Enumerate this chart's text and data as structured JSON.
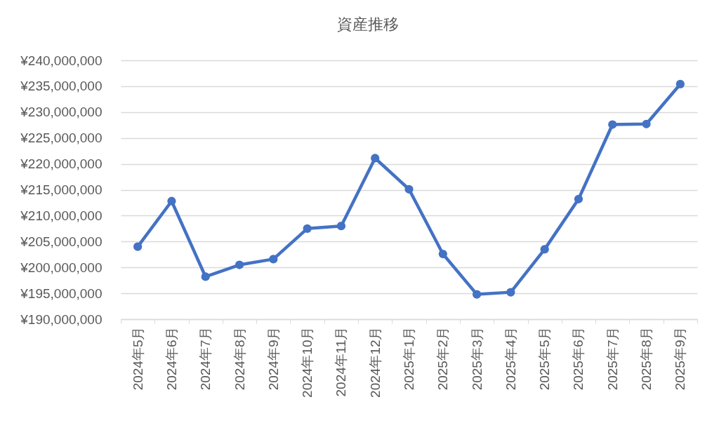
{
  "chart_data": {
    "type": "line",
    "title": "資産推移",
    "categories": [
      "2024年5月",
      "2024年6月",
      "2024年7月",
      "2024年8月",
      "2024年9月",
      "2024年10月",
      "2024年11月",
      "2024年12月",
      "2025年1月",
      "2025年2月",
      "2025年3月",
      "2025年4月",
      "2025年5月",
      "2025年6月",
      "2025年7月",
      "2025年8月",
      "2025年9月"
    ],
    "series": [
      {
        "color": "#4472c4",
        "values": [
          204000000,
          212800000,
          198200000,
          200500000,
          201600000,
          207500000,
          208000000,
          221100000,
          215100000,
          202600000,
          194800000,
          195200000,
          203500000,
          213200000,
          227600000,
          227700000,
          235400000
        ]
      }
    ],
    "ylim": [
      190000000,
      240000000
    ],
    "yticks": [
      {
        "value": 190000000,
        "label": "¥190,000,000"
      },
      {
        "value": 195000000,
        "label": "¥195,000,000"
      },
      {
        "value": 200000000,
        "label": "¥200,000,000"
      },
      {
        "value": 205000000,
        "label": "¥205,000,000"
      },
      {
        "value": 210000000,
        "label": "¥210,000,000"
      },
      {
        "value": 215000000,
        "label": "¥215,000,000"
      },
      {
        "value": 220000000,
        "label": "¥220,000,000"
      },
      {
        "value": 225000000,
        "label": "¥225,000,000"
      },
      {
        "value": 230000000,
        "label": "¥230,000,000"
      },
      {
        "value": 235000000,
        "label": "¥235,000,000"
      },
      {
        "value": 240000000,
        "label": "¥240,000,000"
      }
    ],
    "grid": "y",
    "marker": "circle",
    "line_style": "solid"
  }
}
